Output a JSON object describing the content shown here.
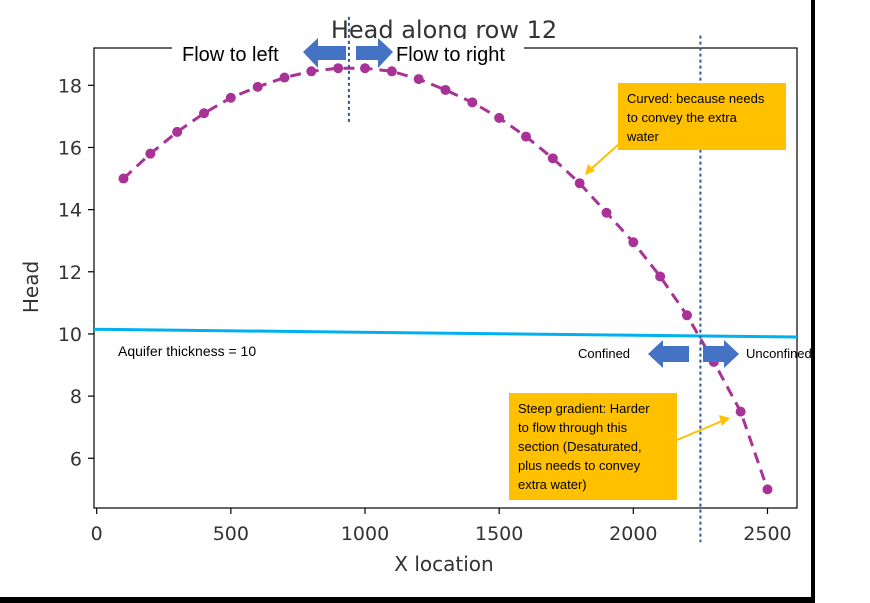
{
  "chart_data": {
    "type": "line",
    "title": "Head along row 12",
    "xlabel": "X location",
    "ylabel": "Head",
    "xlim": [
      -10,
      2610
    ],
    "ylim": [
      4.4,
      19.2
    ],
    "x_ticks": [
      0,
      500,
      1000,
      1500,
      2000,
      2500
    ],
    "y_ticks": [
      6,
      8,
      10,
      12,
      14,
      16,
      18
    ],
    "series": [
      {
        "color": "#a83296",
        "style": "dashed-with-markers",
        "x": [
          100,
          200,
          300,
          400,
          500,
          600,
          700,
          800,
          900,
          1000,
          1100,
          1200,
          1300,
          1400,
          1500,
          1600,
          1700,
          1800,
          1900,
          2000,
          2100,
          2200,
          2300,
          2400,
          2500
        ],
        "values": [
          15.0,
          15.8,
          16.5,
          17.1,
          17.6,
          17.95,
          18.25,
          18.45,
          18.55,
          18.55,
          18.45,
          18.2,
          17.85,
          17.45,
          16.95,
          16.35,
          15.65,
          14.85,
          13.9,
          12.95,
          11.85,
          10.6,
          9.1,
          7.5,
          5.0
        ]
      }
    ],
    "reference_line": {
      "color": "#00b0f0",
      "x": [
        -10,
        2610
      ],
      "y": [
        10.15,
        9.9
      ]
    },
    "divides": [
      {
        "x": 940,
        "y_top": 20.2,
        "y_bottom": 16.8
      },
      {
        "x": 2250,
        "y_top": 19.6,
        "y_bottom": 3.3
      }
    ]
  },
  "annotations": {
    "flow_left": "Flow to left",
    "flow_right": "Flow to right",
    "aquifer_thickness": "Aquifer thickness = 10",
    "confined": "Confined",
    "unconfined": "Unconfined",
    "curved_note": [
      "Curved: because needs",
      "to convey the extra",
      "water"
    ],
    "steep_note": [
      "Steep gradient: Harder",
      "to flow through  this",
      "section (Desaturated,",
      "plus needs to convey",
      "extra water)"
    ]
  },
  "colors": {
    "series": "#a83296",
    "reference_line": "#00b0f0",
    "divide": "#2f5597",
    "arrow": "#4472c4",
    "note_box": "#ffc000",
    "pointer": "#ffc000"
  }
}
